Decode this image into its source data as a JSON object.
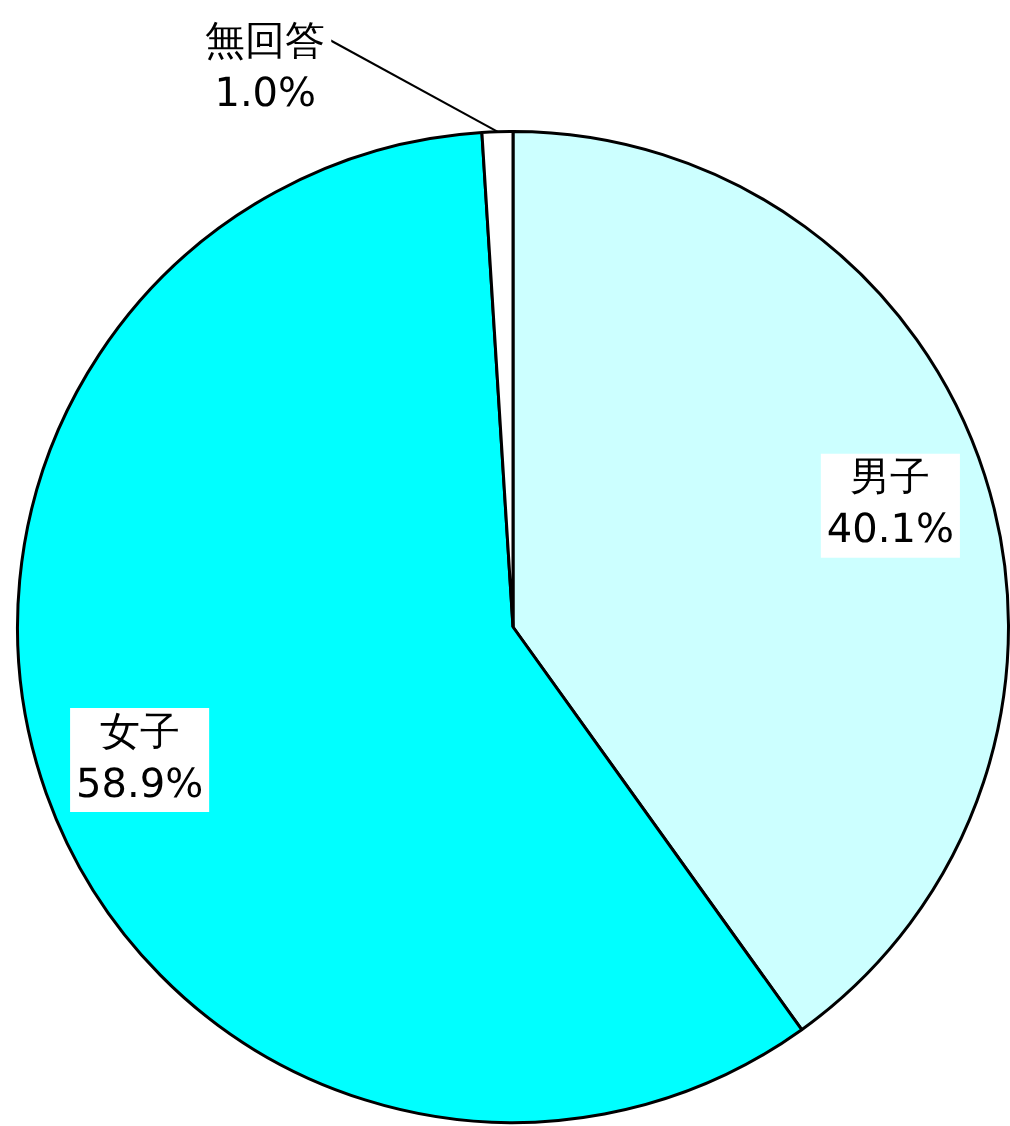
{
  "chart_data": {
    "type": "pie",
    "categories": [
      "男子",
      "女子",
      "無回答"
    ],
    "values": [
      40.1,
      58.9,
      1.0
    ],
    "colors": [
      "#ccffff",
      "#00ffff",
      "#ffffff"
    ],
    "value_labels": [
      "40.1%",
      "58.9%",
      "1.0%"
    ],
    "legend": false
  }
}
